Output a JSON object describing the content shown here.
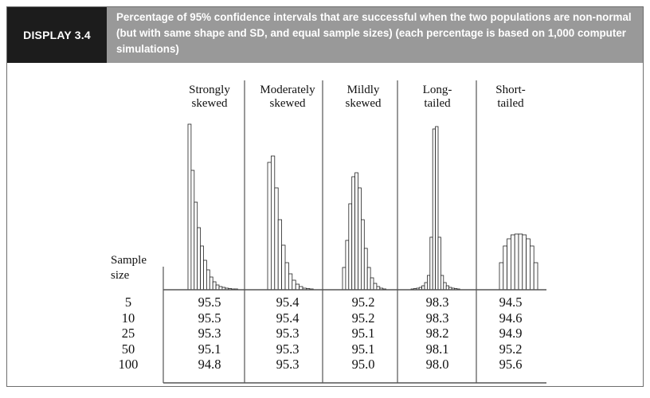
{
  "display_label": "DISPLAY 3.4",
  "caption": "Percentage of 95% confidence intervals that are successful when the two populations are non-normal (but with same shape and SD, and equal sample sizes) (each percentage is based on 1,000 computer simulations)",
  "row_header": [
    "Sample",
    "size"
  ],
  "sample_sizes": [
    "5",
    "10",
    "25",
    "50",
    "100"
  ],
  "columns": [
    {
      "label": [
        "Strongly",
        "skewed"
      ],
      "values": [
        "95.5",
        "95.5",
        "95.3",
        "95.1",
        "94.8"
      ]
    },
    {
      "label": [
        "Moderately",
        "skewed"
      ],
      "values": [
        "95.4",
        "95.4",
        "95.3",
        "95.3",
        "95.3"
      ]
    },
    {
      "label": [
        "Mildly",
        "skewed"
      ],
      "values": [
        "95.2",
        "95.2",
        "95.1",
        "95.1",
        "95.0"
      ]
    },
    {
      "label": [
        "Long-",
        "tailed"
      ],
      "values": [
        "98.3",
        "98.3",
        "98.2",
        "98.1",
        "98.0"
      ]
    },
    {
      "label": [
        "Short-",
        "tailed"
      ],
      "values": [
        "94.5",
        "94.6",
        "94.9",
        "95.2",
        "95.6"
      ]
    }
  ],
  "colors": {
    "header_bg": "#999999",
    "badge_bg": "#1c1c1c",
    "rule": "#555555"
  }
}
